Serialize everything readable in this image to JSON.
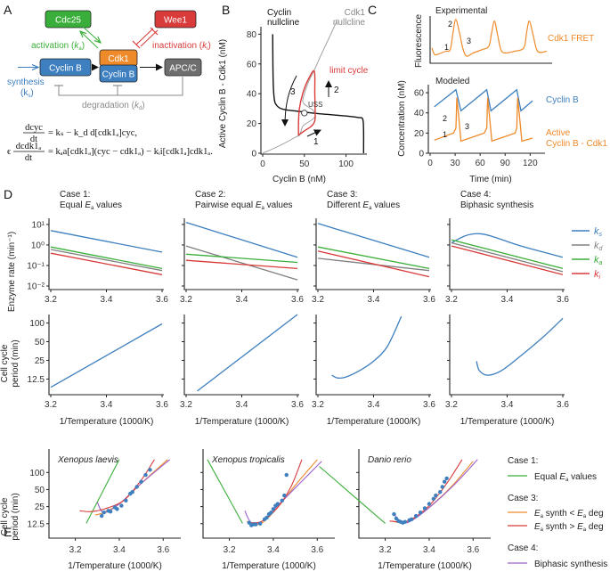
{
  "panels": {
    "A": {
      "letter": "A",
      "nodes": {
        "cdc25": "Cdc25",
        "wee1": "Wee1",
        "cyclin_b": "Cyclin B",
        "cdk1": "Cdk1",
        "complex_cyclin_b": "Cyclin B",
        "apcc": "APC/C"
      },
      "labels": {
        "activation": "activation (",
        "activation_k": "k",
        "activation_sub": "a",
        "inactivation": "inactivation (",
        "inactivation_k": "k",
        "inactivation_sub": "i",
        "synthesis": "synthesis",
        "synthesis_k": "(k",
        "synthesis_sub": "s",
        "degradation": "degradation (",
        "degradation_k": "k",
        "degradation_sub": "d",
        "close": ")"
      },
      "equations": {
        "eq1_num": "dcyc",
        "eq1_den": "dt",
        "eq1_rhs": "= kₛ − k_d d[cdk1ₐ]cyc,",
        "eq2_eps": "ϵ",
        "eq2_num": "dcdk1ₐ",
        "eq2_den": "dt",
        "eq2_rhs": "= kₐa[cdk1ₐ](cyc − cdk1ₐ) − kᵢi[cdk1ₐ]cdk1ₐ."
      },
      "colors": {
        "green": "#3aae3a",
        "red": "#d93a3a",
        "blue": "#3d7fbf",
        "orange": "#ee8a2a",
        "gray": "#707070"
      }
    },
    "B": {
      "letter": "B",
      "chart_data": {
        "type": "line",
        "xlabel": "Cyclin B (nM)",
        "ylabel": "Active Cyclin B - Cdk1 (nM)",
        "xlim": [
          0,
          125
        ],
        "ylim": [
          0,
          85
        ],
        "xticks": [
          "0",
          "50",
          "100"
        ],
        "yticks": [
          "0",
          "20",
          "40",
          "60",
          "80"
        ],
        "annotations": {
          "cyclin_nullcline": [
            "Cyclin",
            "nullcline"
          ],
          "cdk1_nullcline": [
            "Cdk1",
            "nullcline"
          ],
          "limit_cycle": "limit cycle",
          "uss": "USS",
          "n1": "1",
          "n2": "2",
          "n3": "3"
        },
        "series": [
          {
            "name": "Cyclin nullcline",
            "color": "#111111",
            "x": [
              12,
              12.5,
              14,
              17,
              22,
              30,
              45,
              60,
              80,
              100,
              115,
              120,
              121,
              121
            ],
            "y": [
              80,
              50,
              36,
              32,
              30,
              29,
              28,
              27,
              26,
              25,
              24,
              23,
              15,
              0
            ]
          },
          {
            "name": "Cdk1 nullcline",
            "color": "#999999",
            "x": [
              0,
              20,
              40,
              44,
              46,
              48,
              52,
              58,
              62,
              63,
              60,
              55,
              50,
              48,
              50,
              55,
              62,
              70,
              80,
              90
            ],
            "y": [
              0,
              5,
              11,
              12,
              15,
              18,
              20,
              22,
              24,
              26,
              29,
              31,
              33,
              35,
              40,
              48,
              56,
              66,
              78,
              90
            ]
          },
          {
            "name": "limit cycle",
            "color": "#d93a3a",
            "x": [
              43,
              43,
              44,
              48,
              55,
              62,
              62.5,
              63,
              62,
              58,
              50,
              45,
              43
            ],
            "y": [
              12,
              20,
              30,
              40,
              50,
              55,
              40,
              25,
              21,
              18,
              15,
              13,
              12
            ]
          }
        ],
        "uss_point": {
          "x": 50,
          "y": 27
        }
      }
    },
    "C": {
      "letter": "C",
      "experimental_title": "Experimental",
      "modeled_title": "Modeled",
      "exp_ylabel": "Fluorescence",
      "exp_legend": "Cdk1 FRET",
      "chart_data": {
        "type": "line",
        "xlabel": "Time (min)",
        "ylabel": "Concentration (nM)",
        "xlim": [
          0,
          125
        ],
        "ylim": [
          0,
          68
        ],
        "xticks": [
          "0",
          "30",
          "60",
          "90",
          "120"
        ],
        "yticks": [
          "0",
          "20",
          "40",
          "60"
        ],
        "series": [
          {
            "name": "Cyclin B",
            "color": "#3d7fbf",
            "x": [
              5,
              31,
              37,
              68,
              73,
              104,
              109,
              123
            ],
            "y": [
              46,
              63,
              42,
              63,
              42,
              63,
              42,
              52
            ]
          },
          {
            "name": "Active Cyclin B - Cdk1",
            "color": "#ee8a2a",
            "x": [
              5,
              28,
              31,
              32,
              35,
              37,
              65,
              68,
              69,
              72,
              74,
              102,
              104,
              105,
              108,
              110,
              123
            ],
            "y": [
              13,
              20,
              25,
              55,
              30,
              12,
              20,
              25,
              55,
              30,
              12,
              20,
              25,
              55,
              30,
              12,
              15
            ]
          }
        ],
        "annotations": {
          "n1": "1",
          "n2": "2",
          "n3": "3",
          "legend_active": [
            "Active",
            "Cyclin B - Cdk1"
          ]
        }
      }
    },
    "D": {
      "letter": "D",
      "cases": [
        {
          "title": "Case 1:",
          "subtitle_pre": "Equal ",
          "subtitle_E": "E",
          "subtitle_sub": "a",
          "subtitle_post": " values"
        },
        {
          "title": "Case 2:",
          "subtitle_pre": "Pairwise equal ",
          "subtitle_E": "E",
          "subtitle_sub": "a",
          "subtitle_post": " values"
        },
        {
          "title": "Case 3:",
          "subtitle_pre": "Different ",
          "subtitle_E": "E",
          "subtitle_sub": "a",
          "subtitle_post": " values"
        },
        {
          "title": "Case 4:",
          "subtitle_pre": "Biphasic synthesis",
          "subtitle_E": "",
          "subtitle_sub": "",
          "subtitle_post": ""
        }
      ],
      "rate_ylabel": "Enzyme rate (min⁻¹)",
      "period_ylabel": [
        "Cell cycle",
        "period (min)"
      ],
      "xlabel": "1/Temperature (1000/K)",
      "xticks": [
        "3.2",
        "3.4",
        "3.6"
      ],
      "rate_yticks": [
        "10¹",
        "10⁰",
        "10⁻¹",
        "10⁻²"
      ],
      "period_yticks": [
        "100",
        "50",
        "25",
        "12.5"
      ],
      "legend": [
        {
          "k": "k",
          "sub": "s",
          "color": "#3d7fbf"
        },
        {
          "k": "k",
          "sub": "d",
          "color": "#808080"
        },
        {
          "k": "k",
          "sub": "a",
          "color": "#3aae3a"
        },
        {
          "k": "k",
          "sub": "i",
          "color": "#d93a3a"
        }
      ],
      "chart_data": [
        {
          "type": "line",
          "title": "Case 1: Equal Ea values",
          "x": [
            3.2,
            3.6
          ],
          "ylim_log10": [
            -2,
            1.3
          ],
          "series": [
            {
              "name": "ks",
              "values": [
                0.7,
                -0.35
              ]
            },
            {
              "name": "kd",
              "values": [
                -0.22,
                -1.25
              ]
            },
            {
              "name": "ka",
              "values": [
                -0.1,
                -1.15
              ]
            },
            {
              "name": "ki",
              "values": [
                -0.4,
                -1.45
              ]
            }
          ],
          "period": {
            "x": [
              3.2,
              3.6
            ],
            "log2_values": [
              3.2,
              6.6
            ]
          }
        },
        {
          "type": "line",
          "title": "Case 2: Pairwise equal Ea values",
          "x": [
            3.2,
            3.6
          ],
          "ylim_log10": [
            -2,
            1.3
          ],
          "series": [
            {
              "name": "ks",
              "values": [
                1.1,
                -0.6
              ]
            },
            {
              "name": "kd",
              "values": [
                -0.05,
                -1.7
              ]
            },
            {
              "name": "ka",
              "values": [
                -0.45,
                -0.85
              ]
            },
            {
              "name": "ki",
              "values": [
                -0.75,
                -1.15
              ]
            }
          ],
          "period": {
            "x": [
              3.24,
              3.6
            ],
            "log2_values": [
              3.0,
              7.6
            ]
          }
        },
        {
          "type": "line",
          "title": "Case 3: Different Ea values",
          "x": [
            3.2,
            3.6
          ],
          "ylim_log10": [
            -2,
            1.3
          ],
          "series": [
            {
              "name": "ks",
              "values": [
                1.05,
                -0.6
              ]
            },
            {
              "name": "kd",
              "values": [
                -0.65,
                -1.25
              ]
            },
            {
              "name": "ka",
              "values": [
                -0.1,
                -1.15
              ]
            },
            {
              "name": "ki",
              "values": [
                -0.3,
                -1.55
              ]
            }
          ],
          "period": {
            "x": [
              3.25,
              3.27,
              3.3,
              3.35,
              3.4,
              3.45,
              3.5
            ],
            "log2_values": [
              3.85,
              3.7,
              3.75,
              4.1,
              4.6,
              5.4,
              7.0
            ]
          }
        },
        {
          "type": "line",
          "title": "Case 4: Biphasic synthesis",
          "x": [
            3.2,
            3.6
          ],
          "ylim_log10": [
            -2,
            1.3
          ],
          "series": [
            {
              "name": "ks",
              "values": [
                0.1,
                0.45,
                0.55,
                0.4,
                -0.05,
                -0.6
              ],
              "x": [
                3.2,
                3.25,
                3.3,
                3.35,
                3.45,
                3.6
              ]
            },
            {
              "name": "kd",
              "values": [
                0.1,
                -1.3
              ]
            },
            {
              "name": "ka",
              "values": [
                0.25,
                -1.15
              ]
            },
            {
              "name": "ki",
              "values": [
                -0.05,
                -1.45
              ]
            }
          ],
          "period": {
            "x": [
              3.29,
              3.3,
              3.33,
              3.38,
              3.45,
              3.53,
              3.6
            ],
            "log2_values": [
              4.6,
              4.1,
              3.85,
              4.1,
              4.9,
              5.9,
              6.9
            ]
          }
        }
      ]
    },
    "E": {
      "letter": "E",
      "species": [
        "Xenopus laevis",
        "Xenopus tropicalis",
        "Danio rerio"
      ],
      "ylabel": [
        "Cell cycle",
        "period (min)"
      ],
      "xlabel": "1/Temperature (1000/K)",
      "xticks": [
        "3.2",
        "3.4",
        "3.6"
      ],
      "yticks": [
        "100",
        "50",
        "25",
        "12.5"
      ],
      "legend": {
        "case1": "Case 1:",
        "equal": "Equal ",
        "equal_post": " values",
        "case3": "Case 3:",
        "lt_mid": " synth < ",
        "gt_mid": " synth > ",
        "deg": " deg",
        "case4": "Case 4:",
        "biphasic": "Biphasic synthesis",
        "E": "E",
        "sub": "a"
      },
      "colors": {
        "data": "#3d7fbf",
        "case1": "#3aae3a",
        "case3_lt": "#ee8a2a",
        "case3_gt": "#d93a3a",
        "case4": "#9a5fc9"
      }
    }
  }
}
